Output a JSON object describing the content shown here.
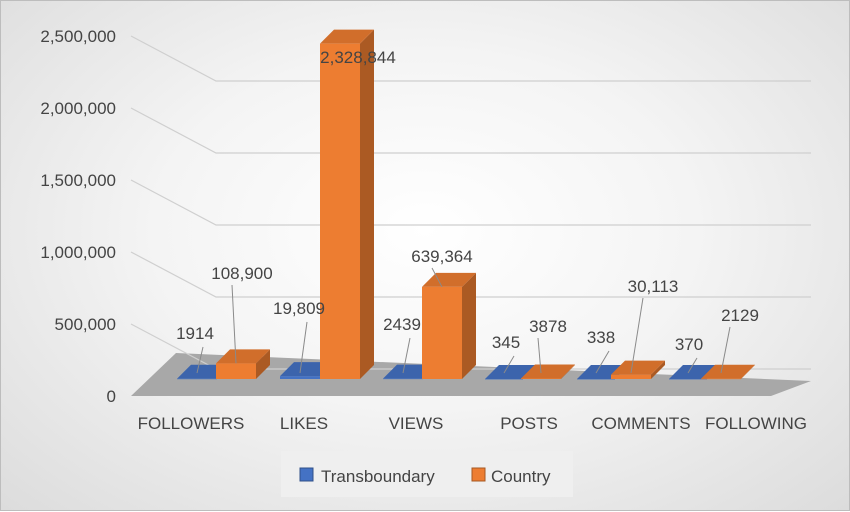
{
  "chart_data": {
    "type": "bar",
    "style": "3d-clustered-column",
    "categories": [
      "FOLLOWERS",
      "LIKES",
      "VIEWS",
      "POSTS",
      "COMMENTS",
      "FOLLOWING"
    ],
    "series": [
      {
        "name": "Transboundary",
        "color": "#4472C4",
        "values": [
          1914,
          19809,
          2439,
          345,
          338,
          370
        ],
        "labels": [
          "1914",
          "19,809",
          "2439",
          "345",
          "338",
          "370"
        ]
      },
      {
        "name": "Country",
        "color": "#ED7D31",
        "values": [
          108900,
          2328844,
          639364,
          3878,
          30113,
          2129
        ],
        "labels": [
          "108,900",
          "2,328,844",
          "639,364",
          "3878",
          "30,113",
          "2129"
        ]
      }
    ],
    "ylim": [
      0,
      2500000
    ],
    "yticks": [
      0,
      500000,
      1000000,
      1500000,
      2000000,
      2500000
    ],
    "ytick_labels": [
      "0",
      "500,000",
      "1,000,000",
      "1,500,000",
      "2,000,000",
      "2,500,000"
    ],
    "title": "",
    "xlabel": "",
    "ylabel": "",
    "grid": true,
    "legend_position": "bottom"
  }
}
